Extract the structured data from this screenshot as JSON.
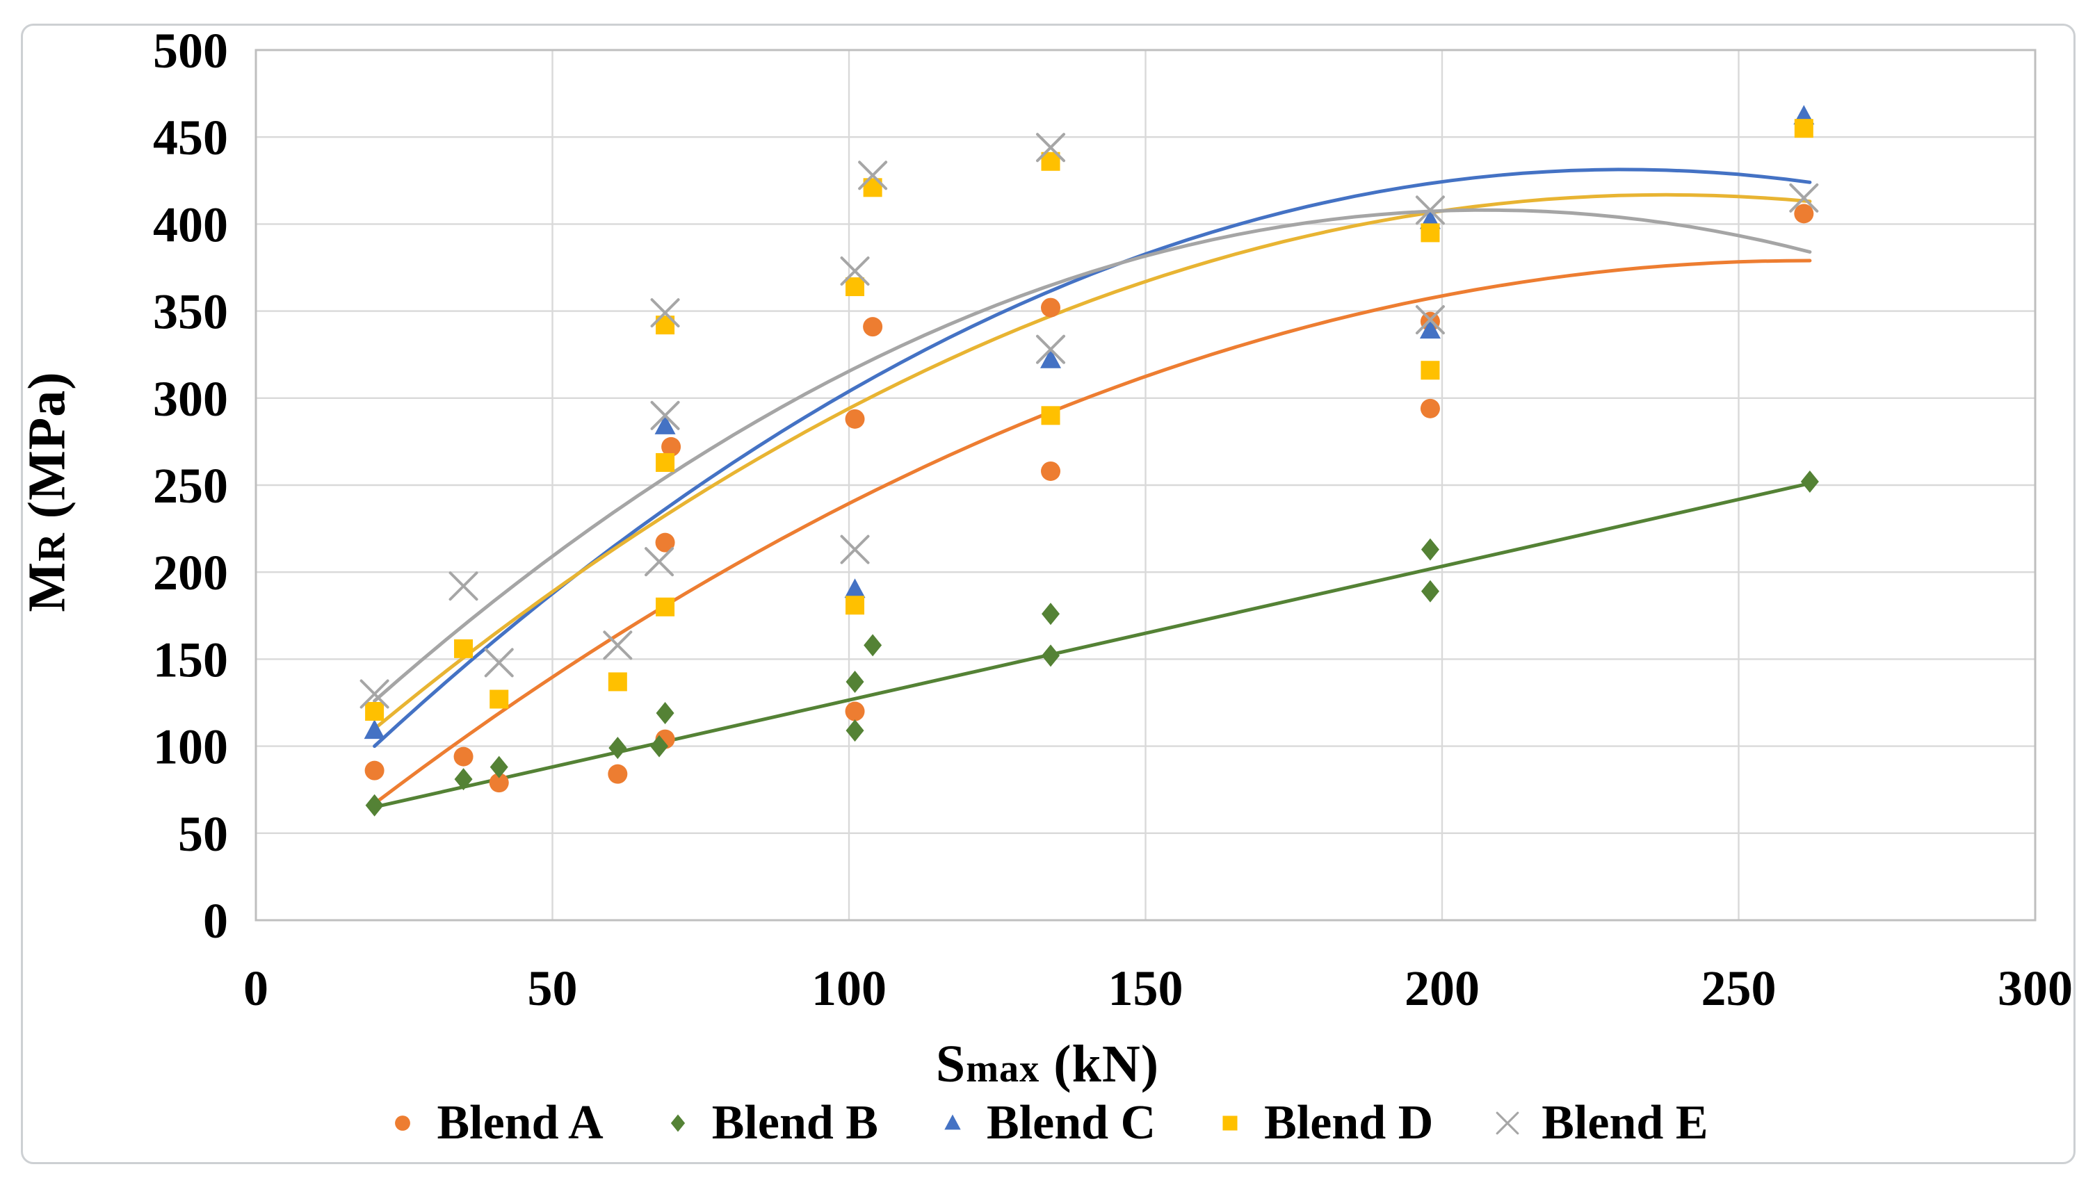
{
  "figure": {
    "description": "Scatter chart with trend lines of resilient modulus versus maximum load for five asphalt blends",
    "background_color": "#ffffff",
    "frame_border_color": "#cdd0d3"
  },
  "chart_data": {
    "type": "scatter",
    "title": "",
    "grid": true,
    "legend_position": "bottom",
    "plot_style": {
      "gridline_color": "#d9d9d9",
      "plot_border_color": "#bfbfbf",
      "tick_label_color": "#000000"
    },
    "x_axis": {
      "label_main": "S",
      "label_sub": "max",
      "label_rest": " (kN)",
      "label_full": "Smax (kN)",
      "min": 0,
      "max": 300,
      "ticks": [
        0,
        50,
        100,
        150,
        200,
        250,
        300
      ]
    },
    "y_axis": {
      "label_main": "M",
      "label_sub": "R",
      "label_rest": " (MPa)",
      "label_full": "MR (MPa)",
      "min": 0,
      "max": 500,
      "ticks": [
        0,
        50,
        100,
        150,
        200,
        250,
        300,
        350,
        400,
        450,
        500
      ]
    },
    "series": [
      {
        "name": "Blend A",
        "color": "#ED7D31",
        "marker": "circle",
        "points": [
          [
            20,
            86
          ],
          [
            35,
            94
          ],
          [
            41,
            79
          ],
          [
            61,
            84
          ],
          [
            69,
            104
          ],
          [
            69,
            217
          ],
          [
            70,
            272
          ],
          [
            101,
            120
          ],
          [
            101,
            288
          ],
          [
            104,
            341
          ],
          [
            134,
            258
          ],
          [
            134,
            352
          ],
          [
            198,
            294
          ],
          [
            198,
            344
          ],
          [
            261,
            406
          ]
        ],
        "trendline": {
          "type": "poly2",
          "anchors": [
            [
              20,
              67
            ],
            [
              140,
              300
            ],
            [
              262,
              379
            ]
          ]
        }
      },
      {
        "name": "Blend B",
        "color": "#548235",
        "marker": "diamond",
        "points": [
          [
            20,
            66
          ],
          [
            35,
            81
          ],
          [
            41,
            88
          ],
          [
            61,
            99
          ],
          [
            68,
            100
          ],
          [
            69,
            119
          ],
          [
            101,
            109
          ],
          [
            101,
            137
          ],
          [
            104,
            158
          ],
          [
            134,
            152
          ],
          [
            134,
            176
          ],
          [
            198,
            189
          ],
          [
            198,
            213
          ],
          [
            262,
            252
          ]
        ],
        "trendline": {
          "type": "linear",
          "anchors": [
            [
              20,
              65
            ],
            [
              262,
              251
            ]
          ]
        }
      },
      {
        "name": "Blend C",
        "color": "#4472C4",
        "marker": "triangle",
        "points": [
          [
            20,
            109
          ],
          [
            69,
            284
          ],
          [
            101,
            190
          ],
          [
            134,
            322
          ],
          [
            198,
            339
          ],
          [
            198,
            402
          ],
          [
            261,
            462
          ]
        ],
        "trendline": {
          "type": "poly2",
          "anchors": [
            [
              20,
              100
            ],
            [
              140,
              370
            ],
            [
              262,
              424
            ]
          ]
        }
      },
      {
        "name": "Blend D",
        "color": "#FFC000",
        "line_color": "#E8B432",
        "marker": "square",
        "points": [
          [
            20,
            120
          ],
          [
            35,
            156
          ],
          [
            41,
            127
          ],
          [
            61,
            137
          ],
          [
            69,
            180
          ],
          [
            69,
            263
          ],
          [
            69,
            342
          ],
          [
            101,
            181
          ],
          [
            101,
            364
          ],
          [
            104,
            421
          ],
          [
            134,
            290
          ],
          [
            134,
            436
          ],
          [
            198,
            316
          ],
          [
            198,
            395
          ],
          [
            261,
            455
          ]
        ],
        "trendline": {
          "type": "poly2",
          "anchors": [
            [
              20,
              110
            ],
            [
              140,
              355
            ],
            [
              262,
              413
            ]
          ]
        }
      },
      {
        "name": "Blend E",
        "color": "#A6A6A6",
        "line_color": "#A5A5A5",
        "marker": "x",
        "points": [
          [
            20,
            130
          ],
          [
            35,
            192
          ],
          [
            41,
            148
          ],
          [
            61,
            158
          ],
          [
            68,
            206
          ],
          [
            69,
            290
          ],
          [
            69,
            349
          ],
          [
            101,
            213
          ],
          [
            101,
            373
          ],
          [
            104,
            428
          ],
          [
            134,
            328
          ],
          [
            134,
            444
          ],
          [
            198,
            345
          ],
          [
            198,
            408
          ],
          [
            261,
            415
          ]
        ],
        "trendline": {
          "type": "poly2",
          "anchors": [
            [
              20,
              126
            ],
            [
              130,
              360
            ],
            [
              262,
              384
            ]
          ]
        }
      }
    ]
  }
}
